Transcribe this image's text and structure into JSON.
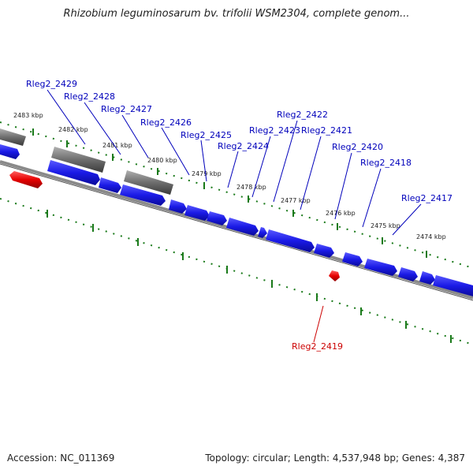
{
  "title": "Rhizobium leguminosarum bv. trifolii WSM2304, complete genom...",
  "footer": {
    "accession": "Accession: NC_011369",
    "summary": "Topology: circular; Length: 4,537,948 bp; Genes: 4,387"
  },
  "colors": {
    "forward_gene": "#1a1ae6",
    "other_gene": "#6e6e6e",
    "highlight_gene": "#e60000",
    "backbone": "#8a8a8a",
    "ticks": "#1a7a1a",
    "gene_label": "#0000bb",
    "highlight_label": "#cc0000"
  },
  "scale": {
    "ticks": [
      "2483 kbp",
      "2482 kbp",
      "2481 kbp",
      "2480 kbp",
      "2479 kbp",
      "2478 kbp",
      "2477 kbp",
      "2476 kbp",
      "2475 kbp",
      "2474 kbp"
    ]
  },
  "genes": [
    {
      "id": "Rleg2_2429",
      "label": "Rleg2_2429",
      "track": "forward"
    },
    {
      "id": "Rleg2_2428",
      "label": "Rleg2_2428",
      "track": "forward"
    },
    {
      "id": "Rleg2_2427",
      "label": "Rleg2_2427",
      "track": "forward"
    },
    {
      "id": "Rleg2_2426",
      "label": "Rleg2_2426",
      "track": "forward"
    },
    {
      "id": "Rleg2_2425",
      "label": "Rleg2_2425",
      "track": "forward"
    },
    {
      "id": "Rleg2_2424",
      "label": "Rleg2_2424",
      "track": "forward"
    },
    {
      "id": "Rleg2_2423",
      "label": "Rleg2_2423",
      "track": "forward"
    },
    {
      "id": "Rleg2_2422",
      "label": "Rleg2_2422",
      "track": "forward"
    },
    {
      "id": "Rleg2_2421",
      "label": "Rleg2_2421",
      "track": "forward"
    },
    {
      "id": "Rleg2_2420",
      "label": "Rleg2_2420",
      "track": "forward"
    },
    {
      "id": "Rleg2_2418",
      "label": "Rleg2_2418",
      "track": "forward"
    },
    {
      "id": "Rleg2_2417",
      "label": "Rleg2_2417",
      "track": "forward"
    },
    {
      "id": "Rleg2_2419",
      "label": "Rleg2_2419",
      "track": "highlight"
    }
  ]
}
